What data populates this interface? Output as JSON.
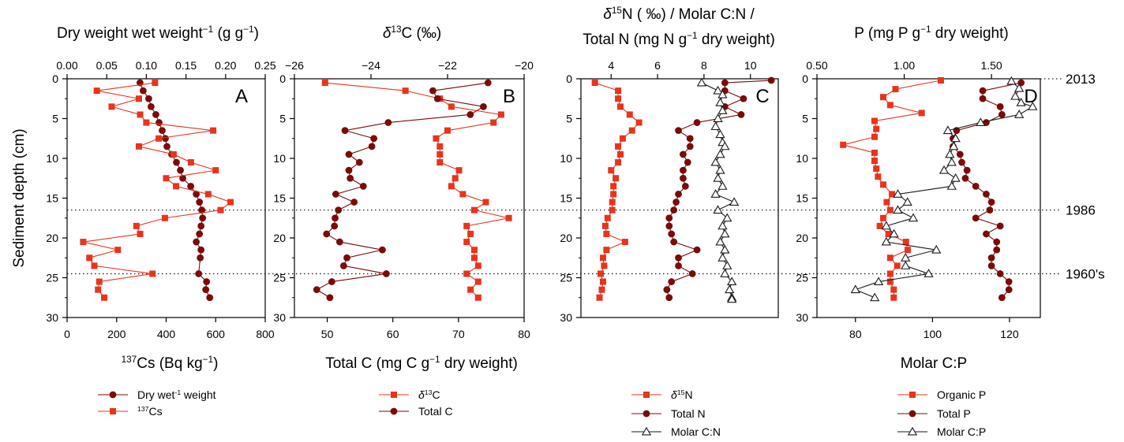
{
  "chart_data": [
    {
      "type": "line",
      "panel_label": "A",
      "y_axis": {
        "label": "Sediment depth (cm)",
        "range": [
          0,
          30
        ],
        "inverted": true,
        "ticks": [
          "0",
          "5",
          "10",
          "15",
          "20",
          "25",
          "30"
        ]
      },
      "top_axis": {
        "label_main": "Dry weight wet weight",
        "label_sup": "−1",
        "label_rest": " (g g",
        "label_sup2": "−1",
        "label_end": ")",
        "range": [
          0,
          0.25
        ],
        "ticks": [
          "0.00",
          "0.05",
          "0.10",
          "0.15",
          "0.20",
          "0.25"
        ]
      },
      "bottom_axis": {
        "label_sup": "137",
        "label_rest": "Cs (Bq kg",
        "label_sup2": "−1",
        "label_end": ")",
        "range": [
          0,
          800
        ],
        "ticks": [
          "0",
          "200",
          "400",
          "600",
          "800"
        ]
      },
      "series": [
        {
          "name": "Dry wet",
          "name_sup": "-1",
          "name_end": " weight",
          "axis": "top",
          "marker": "circle",
          "color": "#7b0a0a",
          "x": [
            0.092,
            0.096,
            0.103,
            0.106,
            0.112,
            0.116,
            0.12,
            0.124,
            0.126,
            0.132,
            0.138,
            0.143,
            0.146,
            0.156,
            0.163,
            0.167,
            0.17,
            0.171,
            0.169,
            0.167,
            0.163,
            0.169,
            0.168,
            0.166,
            0.176,
            0.175,
            0.18
          ],
          "y": [
            0.5,
            1.5,
            2.5,
            3.5,
            4.5,
            5.5,
            6.5,
            7.5,
            8.5,
            9.5,
            10.5,
            11.5,
            12.5,
            13.5,
            14.5,
            15.5,
            16.5,
            17.5,
            18.5,
            19.5,
            20.5,
            21.5,
            22.5,
            24.5,
            25.5,
            26.5,
            27.5
          ]
        },
        {
          "name": "Cs",
          "name_sup": "137",
          "axis": "bottom",
          "marker": "square",
          "color": "#e8341c",
          "x": [
            355,
            120,
            290,
            180,
            295,
            320,
            590,
            370,
            290,
            430,
            500,
            600,
            400,
            440,
            570,
            660,
            620,
            395,
            280,
            295,
            65,
            205,
            90,
            110,
            345,
            130,
            125,
            150
          ],
          "y": [
            0.5,
            1.5,
            2.5,
            3.5,
            4.5,
            5.5,
            6.5,
            7.5,
            8.5,
            9.5,
            10.5,
            11.5,
            12.5,
            13.5,
            14.5,
            15.5,
            16.5,
            17.5,
            18.5,
            19.5,
            20.5,
            21.5,
            22.5,
            23.5,
            24.5,
            25.5,
            26.5,
            27.5
          ]
        }
      ]
    },
    {
      "type": "line",
      "panel_label": "B",
      "top_axis": {
        "label_delta": "δ",
        "label_sup": "13",
        "label_rest": "C (‰)",
        "range": [
          -26,
          -20
        ],
        "ticks": [
          "−26",
          "−24",
          "−22",
          "−20"
        ]
      },
      "bottom_axis": {
        "label": "Total C (mg C g⁻¹ dry weight)",
        "label_main": "Total C (mg C g",
        "label_sup": "−1",
        "label_end": " dry weight)",
        "range": [
          45,
          80
        ],
        "ticks": [
          "50",
          "60",
          "70",
          "80"
        ]
      },
      "series": [
        {
          "name": "C",
          "name_delta": "δ",
          "name_sup": "13",
          "axis": "top",
          "marker": "square",
          "color": "#e8341c",
          "x": [
            -25.2,
            -23.1,
            -22.2,
            -21.9,
            -20.6,
            -20.8,
            -22.0,
            -22.3,
            -22.2,
            -22.2,
            -22.2,
            -21.7,
            -21.8,
            -21.9,
            -21.6,
            -21.0,
            -21.3,
            -20.4,
            -21.5,
            -21.4,
            -21.5,
            -21.3,
            -21.3,
            -21.2,
            -21.5,
            -21.2,
            -21.4,
            -21.2
          ],
          "y": [
            0.5,
            1.5,
            2.5,
            3.5,
            4.5,
            5.5,
            6.5,
            7.5,
            8.5,
            9.5,
            10.5,
            11.5,
            12.5,
            13.5,
            14.5,
            15.5,
            16.5,
            17.5,
            18.5,
            19.5,
            20.5,
            21.5,
            22.5,
            23.5,
            24.5,
            25.5,
            26.5,
            27.5
          ]
        },
        {
          "name": "Total C",
          "axis": "bottom",
          "marker": "circle",
          "color": "#7b0a0a",
          "x": [
            74.5,
            66.1,
            66.8,
            73.8,
            71.8,
            59.3,
            52.7,
            57.1,
            56.8,
            53.3,
            54.9,
            53.3,
            53.5,
            55.5,
            51.3,
            54.1,
            51.7,
            51.2,
            51.1,
            49.9,
            51.9,
            58.4,
            53.0,
            52.5,
            59.0,
            50.7,
            48.4,
            50.4
          ],
          "y": [
            0.5,
            1.5,
            2.5,
            3.5,
            4.5,
            5.5,
            6.5,
            7.5,
            8.5,
            9.5,
            10.5,
            11.5,
            12.5,
            13.5,
            14.5,
            15.5,
            16.5,
            17.5,
            18.5,
            19.5,
            20.5,
            21.5,
            22.5,
            23.5,
            24.5,
            25.5,
            26.5,
            27.5
          ]
        }
      ]
    },
    {
      "type": "line",
      "panel_label": "C",
      "top_axis": {
        "label_line1_delta": "δ",
        "label_line1_sup": "15",
        "label_line1_rest": "N ( ‰) / Molar C:N /",
        "label_line2_main": "Total N (mg N g",
        "label_line2_sup": "−1",
        "label_line2_end": " dry weight)",
        "range": [
          2.7,
          11.2
        ],
        "ticks": [
          "4",
          "6",
          "8",
          "10"
        ]
      },
      "series": [
        {
          "name": "N",
          "name_delta": "δ",
          "name_sup": "15",
          "marker": "square",
          "color": "#e8341c",
          "x": [
            3.3,
            4.3,
            4.3,
            4.4,
            4.8,
            5.2,
            4.9,
            4.5,
            4.3,
            4.4,
            4.3,
            4.0,
            4.2,
            4.1,
            4.1,
            4.05,
            4.05,
            3.85,
            3.75,
            3.8,
            4.6,
            3.8,
            3.65,
            3.7,
            3.55,
            3.65,
            3.6,
            3.5
          ],
          "y": [
            0.5,
            1.5,
            2.5,
            3.5,
            4.5,
            5.5,
            6.5,
            7.5,
            8.5,
            9.5,
            10.5,
            11.5,
            12.5,
            13.5,
            14.5,
            15.5,
            16.5,
            17.5,
            18.5,
            19.5,
            20.5,
            21.5,
            22.5,
            23.5,
            24.5,
            25.5,
            26.5,
            27.5
          ]
        },
        {
          "name": "Total N",
          "marker": "circle",
          "color": "#7b0a0a",
          "x": [
            10.9,
            8.9,
            8.9,
            9.7,
            8.9,
            9.6,
            7.7,
            6.9,
            7.4,
            7.4,
            7.1,
            7.3,
            7.1,
            7.1,
            7.2,
            6.9,
            6.8,
            6.7,
            6.5,
            6.5,
            6.6,
            6.7,
            7.7,
            6.9,
            6.9,
            7.5,
            6.6,
            6.4,
            6.5
          ],
          "y": [
            0.2,
            0.5,
            1.5,
            2.5,
            3.5,
            4.5,
            5.5,
            6.5,
            7.5,
            8.5,
            9.5,
            10.5,
            11.5,
            12.5,
            13.5,
            14.5,
            15.5,
            16.5,
            17.5,
            18.5,
            19.5,
            20.5,
            21.5,
            22.5,
            23.5,
            24.5,
            25.5,
            26.5,
            27.5
          ]
        },
        {
          "name": "Molar C:N",
          "marker": "triangle",
          "color": "#1a1a1a",
          "x": [
            7.9,
            8.6,
            8.8,
            8.7,
            8.8,
            8.6,
            8.5,
            8.7,
            8.8,
            8.9,
            8.7,
            8.5,
            8.7,
            8.6,
            8.8,
            8.5,
            9.3,
            8.6,
            9.0,
            8.8,
            8.9,
            8.7,
            8.9,
            8.8,
            9.0,
            8.9,
            9.2,
            9.1,
            9.2,
            9.2
          ],
          "y": [
            0.5,
            1.5,
            2.0,
            3.0,
            4.0,
            5.0,
            6.0,
            7.0,
            8.0,
            8.5,
            9.5,
            10.5,
            11.5,
            12.5,
            13.5,
            14.5,
            15.5,
            16.5,
            17.5,
            18.5,
            19.5,
            20.5,
            21.5,
            22.5,
            23.5,
            24.5,
            25.5,
            26.5,
            27.5,
            27.7
          ]
        }
      ]
    },
    {
      "type": "line",
      "panel_label": "D",
      "top_axis": {
        "label_main": "P (mg P g",
        "label_sup": "−1",
        "label_end": " dry weight)",
        "range": [
          0.5,
          1.78
        ],
        "ticks": [
          "0.50",
          "1.00",
          "1.50"
        ]
      },
      "bottom_axis": {
        "label": "Molar C:P",
        "range": [
          70,
          128
        ],
        "ticks": [
          "80",
          "100",
          "120"
        ]
      },
      "series": [
        {
          "name": "Organic P",
          "axis": "top",
          "marker": "square",
          "color": "#e8341c",
          "x": [
            1.21,
            0.95,
            0.88,
            0.92,
            1.1,
            0.83,
            0.84,
            0.83,
            0.65,
            0.83,
            0.83,
            0.84,
            0.85,
            0.88,
            0.93,
            0.9,
            0.92,
            0.88,
            0.86,
            0.91,
            1.01,
            1.02,
            0.92,
            0.96,
            0.92,
            0.92,
            0.94,
            0.94
          ],
          "y": [
            0.2,
            1.3,
            2.3,
            3.3,
            4.3,
            5.3,
            6.3,
            7.3,
            8.3,
            9.3,
            10.3,
            11.3,
            12.3,
            13.3,
            14.5,
            15.5,
            16.5,
            17.5,
            18.5,
            19.5,
            20.5,
            21.5,
            22.5,
            23.5,
            24.5,
            25.5,
            26.5,
            27.5
          ]
        },
        {
          "name": "Total P",
          "axis": "top",
          "marker": "circle",
          "color": "#7b0a0a",
          "x": [
            1.67,
            1.45,
            1.45,
            1.55,
            1.56,
            1.47,
            1.3,
            1.28,
            1.28,
            1.32,
            1.33,
            1.36,
            1.35,
            1.41,
            1.47,
            1.5,
            1.49,
            1.41,
            1.55,
            1.47,
            1.53,
            1.53,
            1.5,
            1.5,
            1.55,
            1.6,
            1.6,
            1.56
          ],
          "y": [
            0.5,
            1.5,
            2.5,
            3.5,
            4.5,
            5.5,
            6.5,
            7.5,
            8.5,
            9.5,
            10.5,
            11.5,
            12.5,
            13.5,
            14.5,
            15.5,
            16.5,
            17.5,
            18.5,
            19.5,
            20.5,
            21.5,
            22.5,
            23.5,
            24.5,
            25.5,
            26.5,
            27.5
          ]
        },
        {
          "name": "Molar C:P",
          "axis": "bottom",
          "marker": "triangle",
          "color": "#1a1a1a",
          "x": [
            120.5,
            122.5,
            121.5,
            123.0,
            126.0,
            122.5,
            112.5,
            104.0,
            106.0,
            105.5,
            104.5,
            105.0,
            103.0,
            106.0,
            105.0,
            91.0,
            93.5,
            91.0,
            95.0,
            88.0,
            90.0,
            88.0,
            101.0,
            93.0,
            93.0,
            99.0,
            86.0,
            80.0,
            85.0
          ],
          "y": [
            0.3,
            1.2,
            2.2,
            3.0,
            3.5,
            4.5,
            5.5,
            6.5,
            7.5,
            8.5,
            9.5,
            10.5,
            11.5,
            12.5,
            13.5,
            14.5,
            15.5,
            16.5,
            17.5,
            18.5,
            19.5,
            20.5,
            21.5,
            22.5,
            23.5,
            24.5,
            25.5,
            26.5,
            27.5
          ]
        }
      ]
    }
  ],
  "reference_lines": [
    {
      "depth": 0,
      "label": "2013"
    },
    {
      "depth": 16.5,
      "label": "1986"
    },
    {
      "depth": 24.5,
      "label": "1960's"
    }
  ]
}
